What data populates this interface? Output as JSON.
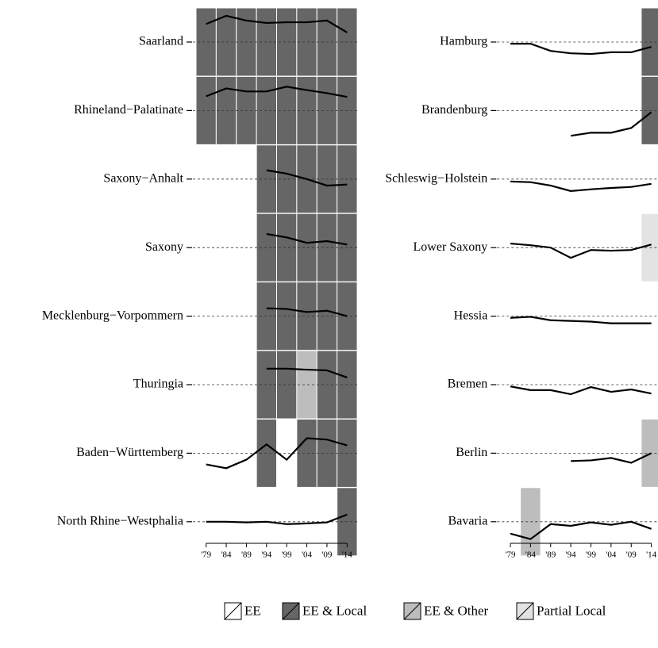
{
  "chart_data": [
    {
      "type": "line",
      "x": [
        1979,
        1984,
        1989,
        1994,
        1999,
        2004,
        2009,
        2014
      ],
      "xlim": [
        1976.5,
        2016.5
      ],
      "xticks": [
        {
          "value": 1979,
          "label": "'79"
        },
        {
          "value": 1984,
          "label": "'84"
        },
        {
          "value": 1989,
          "label": "'89"
        },
        {
          "value": 1994,
          "label": "'94"
        },
        {
          "value": 1999,
          "label": "'99"
        },
        {
          "value": 2004,
          "label": "'04"
        },
        {
          "value": 2009,
          "label": "'09"
        },
        {
          "value": 2014,
          "label": "'14"
        }
      ],
      "ylim": [
        -1,
        1
      ],
      "series": [
        {
          "name": "Saarland",
          "values": [
            0.53,
            0.77,
            0.63,
            0.56,
            0.58,
            0.58,
            0.63,
            0.28
          ],
          "cells": [
            1,
            1,
            1,
            1,
            1,
            1,
            1,
            1
          ]
        },
        {
          "name": "Rhineland−Palatinate",
          "values": [
            0.42,
            0.65,
            0.56,
            0.56,
            0.7,
            0.6,
            0.51,
            0.4
          ],
          "cells": [
            1,
            1,
            1,
            1,
            1,
            1,
            1,
            1
          ]
        },
        {
          "name": "Saxony−Anhalt",
          "values": [
            null,
            null,
            null,
            0.26,
            0.16,
            0,
            -0.19,
            -0.16
          ],
          "cells": [
            null,
            null,
            null,
            1,
            1,
            1,
            1,
            1
          ]
        },
        {
          "name": "Saxony",
          "values": [
            null,
            null,
            null,
            0.4,
            0.3,
            0.14,
            0.19,
            0.09
          ],
          "cells": [
            null,
            null,
            null,
            1,
            1,
            1,
            1,
            1
          ]
        },
        {
          "name": "Mecklenburg−Vorpommern",
          "values": [
            null,
            null,
            null,
            0.23,
            0.21,
            0.12,
            0.16,
            0
          ],
          "cells": [
            null,
            null,
            null,
            1,
            1,
            1,
            1,
            1
          ]
        },
        {
          "name": "Thuringia",
          "values": [
            null,
            null,
            null,
            0.47,
            0.47,
            0.44,
            0.42,
            0.21
          ],
          "cells": [
            null,
            null,
            null,
            1,
            1,
            2,
            1,
            1
          ]
        },
        {
          "name": "Baden−Württemberg",
          "values": [
            -0.33,
            -0.44,
            -0.19,
            0.26,
            -0.19,
            0.44,
            0.4,
            0.23
          ],
          "cells": [
            null,
            null,
            null,
            1,
            0,
            1,
            1,
            1
          ]
        },
        {
          "name": "North Rhine−Westphalia",
          "values": [
            0,
            0,
            -0.02,
            0,
            -0.07,
            -0.05,
            -0.02,
            0.21
          ],
          "cells": [
            null,
            null,
            null,
            null,
            null,
            null,
            null,
            1
          ]
        }
      ]
    },
    {
      "type": "line",
      "x": [
        1979,
        1984,
        1989,
        1994,
        1999,
        2004,
        2009,
        2014
      ],
      "xlim": [
        1976.5,
        2016.5
      ],
      "xticks": [
        {
          "value": 1979,
          "label": "'79"
        },
        {
          "value": 1984,
          "label": "'84"
        },
        {
          "value": 1989,
          "label": "'89"
        },
        {
          "value": 1994,
          "label": "'94"
        },
        {
          "value": 1999,
          "label": "'99"
        },
        {
          "value": 2004,
          "label": "'04"
        },
        {
          "value": 2009,
          "label": "'09"
        },
        {
          "value": 2014,
          "label": "'14"
        }
      ],
      "ylim": [
        -1,
        1
      ],
      "series": [
        {
          "name": "Hamburg",
          "values": [
            -0.05,
            -0.05,
            -0.26,
            -0.33,
            -0.35,
            -0.3,
            -0.3,
            -0.14
          ],
          "cells": [
            null,
            null,
            null,
            null,
            null,
            null,
            null,
            1
          ]
        },
        {
          "name": "Brandenburg",
          "values": [
            null,
            null,
            null,
            -0.74,
            -0.65,
            -0.65,
            -0.51,
            -0.05
          ],
          "cells": [
            null,
            null,
            null,
            null,
            null,
            null,
            null,
            1
          ]
        },
        {
          "name": "Schleswig−Holstein",
          "values": [
            -0.07,
            -0.09,
            -0.19,
            -0.35,
            -0.3,
            -0.26,
            -0.23,
            -0.14
          ],
          "cells": [
            null,
            null,
            null,
            null,
            null,
            null,
            null,
            null
          ]
        },
        {
          "name": "Lower Saxony",
          "values": [
            0.12,
            0.07,
            0,
            -0.3,
            -0.07,
            -0.09,
            -0.07,
            0.09
          ],
          "cells": [
            null,
            null,
            null,
            null,
            null,
            null,
            null,
            3
          ]
        },
        {
          "name": "Hessia",
          "values": [
            -0.05,
            -0.02,
            -0.12,
            -0.14,
            -0.16,
            -0.21,
            -0.21,
            -0.21
          ],
          "cells": [
            null,
            null,
            null,
            null,
            null,
            null,
            null,
            null
          ]
        },
        {
          "name": "Bremen",
          "values": [
            -0.05,
            -0.16,
            -0.16,
            -0.28,
            -0.07,
            -0.21,
            -0.14,
            -0.26
          ],
          "cells": [
            null,
            null,
            null,
            null,
            null,
            null,
            null,
            null
          ]
        },
        {
          "name": "Berlin",
          "values": [
            null,
            null,
            null,
            -0.23,
            -0.21,
            -0.14,
            -0.28,
            0
          ],
          "cells": [
            null,
            null,
            null,
            null,
            null,
            null,
            null,
            2
          ]
        },
        {
          "name": "Bavaria",
          "values": [
            -0.35,
            -0.51,
            -0.07,
            -0.12,
            -0.02,
            -0.09,
            0,
            -0.21
          ],
          "cells": [
            null,
            2,
            null,
            null,
            null,
            null,
            null,
            null
          ]
        }
      ]
    },
    {
      "type": "legend",
      "labels": [
        "EE",
        "EE & Local",
        "EE & Other",
        "Partial Local"
      ],
      "colors": [
        "#ffffff",
        "#666666",
        "#bdbdbd",
        "#e3e3e3"
      ]
    }
  ]
}
